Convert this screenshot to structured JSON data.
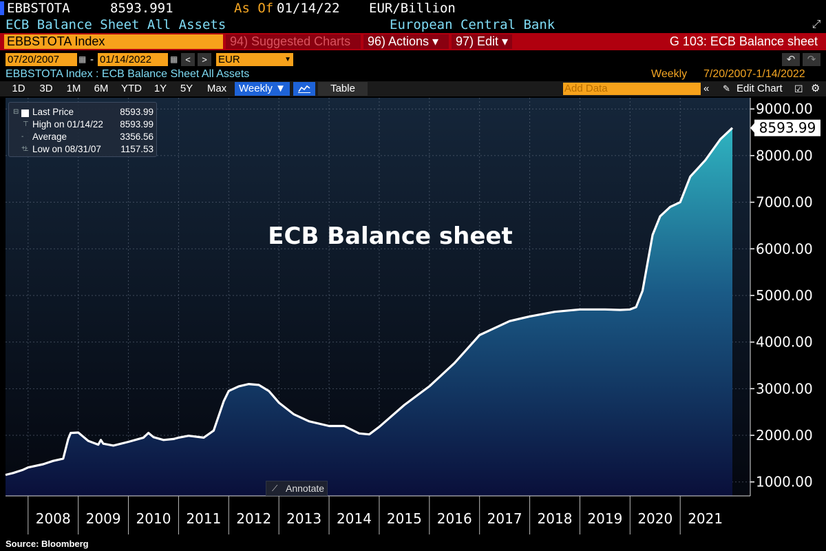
{
  "header": {
    "ticker": "EBBSTOTA",
    "price": "8593.991",
    "as_of_label": "As Of",
    "as_of_date": "01/14/22",
    "unit": "EUR/Billion",
    "description": "ECB Balance Sheet All Assets",
    "issuer": "European Central Bank"
  },
  "command_bar": {
    "security": "EBBSTOTA Index",
    "suggested_charts": "94) Suggested Charts",
    "actions": "96) Actions ▾",
    "edit": "97) Edit ▾",
    "page_title": "G 103: ECB Balance sheet"
  },
  "date_range": {
    "start": "07/20/2007",
    "end": "01/14/2022",
    "dash": "-",
    "currency": "EUR"
  },
  "title_line": {
    "security_desc": "EBBSTOTA Index : ECB Balance Sheet All Assets",
    "frequency": "Weekly",
    "range": "7/20/2007-1/14/2022"
  },
  "toolbar": {
    "ranges": [
      "1D",
      "3D",
      "1M",
      "6M",
      "YTD",
      "1Y",
      "5Y",
      "Max"
    ],
    "weekly": "Weekly ▼",
    "table": "Table",
    "add_data_placeholder": "Add Data",
    "edit_chart": "Edit Chart"
  },
  "legend": {
    "last_price_label": "Last Price",
    "last_price_value": "8593.99",
    "high_label": "High on 01/14/22",
    "high_value": "8593.99",
    "average_label": "Average",
    "average_value": "3356.56",
    "low_label": "Low on 08/31/07",
    "low_value": "1157.53"
  },
  "annotate_label": "Annotate",
  "source": "Source: Bloomberg",
  "last_value_tag": "8593.99",
  "colors": {
    "line": "#ffffff",
    "fill_top": "#2a9fb0",
    "fill_bottom": "#0a0f3a",
    "background_top": "#15263a",
    "background_bottom": "#04070f",
    "accent_orange": "#f7a21b",
    "command_red": "#b0000f"
  },
  "chart_data": {
    "type": "area",
    "title": "ECB Balance sheet",
    "xlabel": "",
    "ylabel": "",
    "ylim": [
      1000,
      9000
    ],
    "y_ticks": [
      1000,
      2000,
      3000,
      4000,
      5000,
      6000,
      7000,
      8000,
      9000
    ],
    "y_tick_labels": [
      "1000.00",
      "2000.00",
      "3000.00",
      "4000.00",
      "5000.00",
      "6000.00",
      "7000.00",
      "8000.00",
      "9000.00"
    ],
    "x_tick_labels": [
      "2008",
      "2009",
      "2010",
      "2011",
      "2012",
      "2013",
      "2014",
      "2015",
      "2016",
      "2017",
      "2018",
      "2019",
      "2020",
      "2021"
    ],
    "x_range": [
      2007.55,
      2022.04
    ],
    "grid": true,
    "series": [
      {
        "x": [
          2007.55,
          2007.7,
          2007.9,
          2008.0,
          2008.3,
          2008.5,
          2008.7,
          2008.8,
          2008.85,
          2009.0,
          2009.2,
          2009.4,
          2009.45,
          2009.5,
          2009.7,
          2010.0,
          2010.3,
          2010.4,
          2010.5,
          2010.7,
          2010.9,
          2011.0,
          2011.2,
          2011.5,
          2011.7,
          2011.9,
          2012.0,
          2012.2,
          2012.4,
          2012.6,
          2012.8,
          2013.0,
          2013.3,
          2013.6,
          2014.0,
          2014.3,
          2014.6,
          2014.8,
          2015.0,
          2015.5,
          2016.0,
          2016.5,
          2017.0,
          2017.3,
          2017.6,
          2018.0,
          2018.5,
          2019.0,
          2019.5,
          2019.8,
          2020.0,
          2020.12,
          2020.25,
          2020.35,
          2020.45,
          2020.6,
          2020.8,
          2021.0,
          2021.2,
          2021.5,
          2021.8,
          2022.04
        ],
        "y": [
          1150,
          1190,
          1260,
          1310,
          1380,
          1450,
          1500,
          1920,
          2050,
          2060,
          1880,
          1800,
          1900,
          1820,
          1780,
          1860,
          1950,
          2050,
          1960,
          1900,
          1920,
          1950,
          1990,
          1950,
          2100,
          2730,
          2950,
          3050,
          3100,
          3080,
          2950,
          2700,
          2450,
          2300,
          2200,
          2200,
          2040,
          2020,
          2180,
          2650,
          3050,
          3550,
          4150,
          4300,
          4450,
          4550,
          4650,
          4700,
          4700,
          4690,
          4700,
          4750,
          5100,
          5700,
          6300,
          6700,
          6900,
          7000,
          7550,
          7900,
          8350,
          8594
        ]
      }
    ],
    "annotations": [
      "ECB Balance sheet"
    ],
    "last_value": 8593.99
  }
}
